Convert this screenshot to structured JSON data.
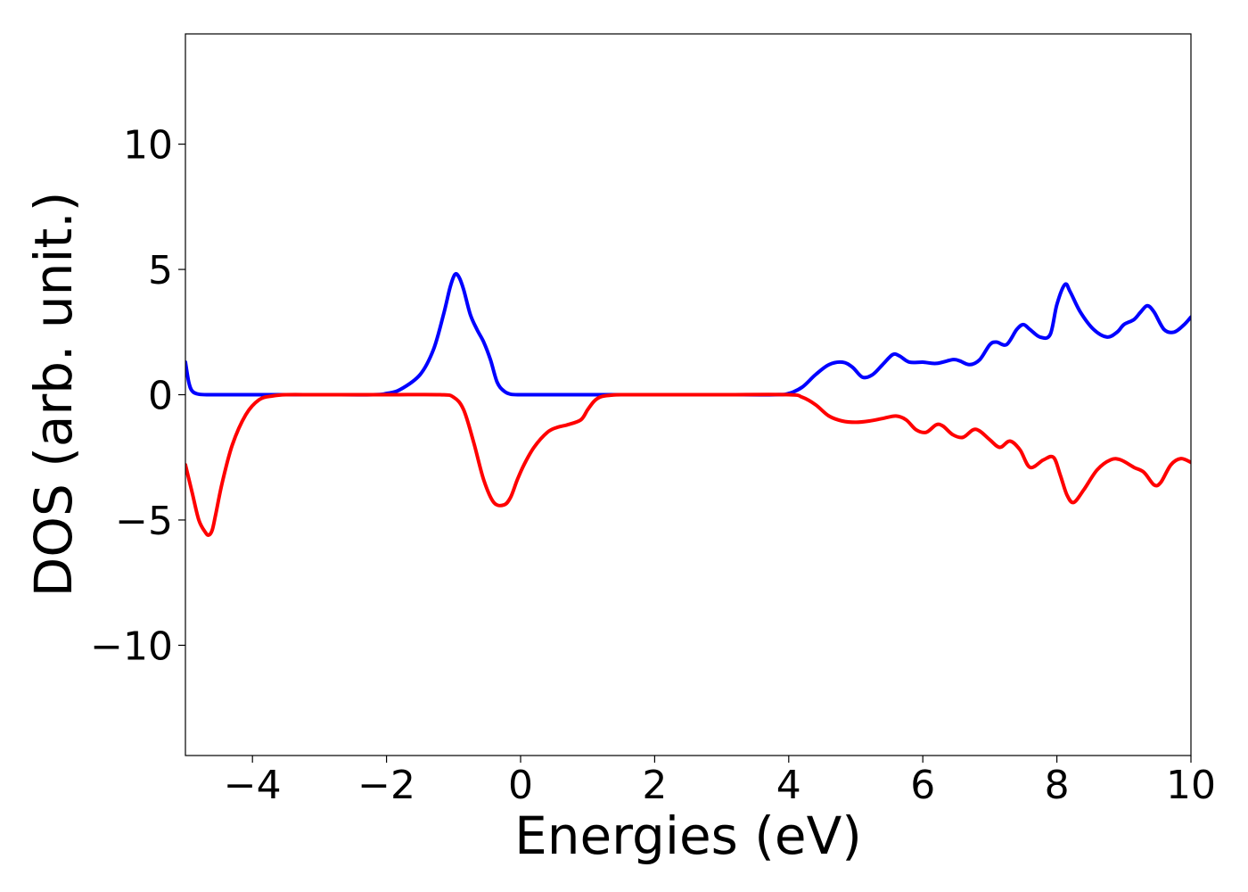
{
  "chart_data": {
    "type": "line",
    "xlabel": "Energies (eV)",
    "ylabel": "DOS (arb. unit.)",
    "xlim": [
      -5,
      10
    ],
    "ylim": [
      -14.4,
      14.4
    ],
    "grid": false,
    "x_ticks": [
      -4,
      -2,
      0,
      2,
      4,
      6,
      8,
      10
    ],
    "x_tick_labels": [
      "−4",
      "−2",
      "0",
      "2",
      "4",
      "6",
      "8",
      "10"
    ],
    "y_ticks": [
      -10,
      -5,
      0,
      5,
      10
    ],
    "y_tick_labels": [
      "−10",
      "−5",
      "0",
      "5",
      "10"
    ],
    "series": [
      {
        "color": "#0000ff",
        "x": [
          -5.0,
          -4.95,
          -4.9,
          -4.8,
          -4.6,
          -4.0,
          -3.0,
          -2.2,
          -2.0,
          -1.8,
          -1.5,
          -1.3,
          -1.15,
          -1.05,
          -0.98,
          -0.92,
          -0.85,
          -0.75,
          -0.65,
          -0.55,
          -0.45,
          -0.35,
          -0.25,
          -0.15,
          0.0,
          0.2,
          0.5,
          1.0,
          2.0,
          3.0,
          3.8,
          4.0,
          4.2,
          4.4,
          4.6,
          4.8,
          4.95,
          5.1,
          5.25,
          5.4,
          5.55,
          5.65,
          5.8,
          6.0,
          6.2,
          6.45,
          6.55,
          6.7,
          6.85,
          7.0,
          7.1,
          7.25,
          7.4,
          7.5,
          7.6,
          7.75,
          7.9,
          8.0,
          8.12,
          8.2,
          8.35,
          8.55,
          8.75,
          8.9,
          9.0,
          9.15,
          9.25,
          9.35,
          9.45,
          9.6,
          9.75,
          9.9,
          10.0
        ],
        "y": [
          1.3,
          0.5,
          0.15,
          0.02,
          0.0,
          0.0,
          0.0,
          0.0,
          0.05,
          0.2,
          0.8,
          1.8,
          3.2,
          4.3,
          4.8,
          4.7,
          4.2,
          3.2,
          2.6,
          2.1,
          1.4,
          0.5,
          0.15,
          0.02,
          0.0,
          0.0,
          0.0,
          0.0,
          0.0,
          0.0,
          0.0,
          0.05,
          0.3,
          0.8,
          1.2,
          1.3,
          1.1,
          0.7,
          0.8,
          1.2,
          1.6,
          1.55,
          1.3,
          1.3,
          1.25,
          1.4,
          1.35,
          1.2,
          1.4,
          2.0,
          2.1,
          2.0,
          2.6,
          2.8,
          2.6,
          2.3,
          2.4,
          3.6,
          4.4,
          4.1,
          3.3,
          2.6,
          2.3,
          2.5,
          2.8,
          3.0,
          3.3,
          3.55,
          3.3,
          2.6,
          2.5,
          2.8,
          3.1
        ]
      },
      {
        "color": "#ff0000",
        "x": [
          -5.0,
          -4.9,
          -4.8,
          -4.7,
          -4.65,
          -4.6,
          -4.55,
          -4.45,
          -4.3,
          -4.1,
          -3.9,
          -3.7,
          -3.5,
          -3.0,
          -2.0,
          -1.2,
          -1.0,
          -0.85,
          -0.7,
          -0.55,
          -0.4,
          -0.25,
          -0.15,
          -0.05,
          0.05,
          0.2,
          0.4,
          0.55,
          0.7,
          0.9,
          1.0,
          1.1,
          1.2,
          1.35,
          1.5,
          2.0,
          3.0,
          4.0,
          4.2,
          4.4,
          4.6,
          4.8,
          5.0,
          5.2,
          5.4,
          5.6,
          5.75,
          5.9,
          6.05,
          6.2,
          6.3,
          6.45,
          6.6,
          6.75,
          6.85,
          7.0,
          7.15,
          7.3,
          7.45,
          7.6,
          7.8,
          7.95,
          8.05,
          8.15,
          8.25,
          8.4,
          8.6,
          8.8,
          8.95,
          9.15,
          9.3,
          9.45,
          9.55,
          9.7,
          9.85,
          10.0
        ],
        "y": [
          -2.8,
          -3.9,
          -5.0,
          -5.5,
          -5.6,
          -5.4,
          -4.8,
          -3.5,
          -2.0,
          -0.8,
          -0.2,
          -0.05,
          0.0,
          0.0,
          0.0,
          0.0,
          -0.1,
          -0.6,
          -1.9,
          -3.4,
          -4.3,
          -4.4,
          -4.1,
          -3.4,
          -2.8,
          -2.1,
          -1.5,
          -1.3,
          -1.2,
          -1.0,
          -0.6,
          -0.25,
          -0.08,
          -0.02,
          0.0,
          0.0,
          0.0,
          0.0,
          -0.1,
          -0.4,
          -0.85,
          -1.05,
          -1.1,
          -1.05,
          -0.95,
          -0.85,
          -1.0,
          -1.4,
          -1.5,
          -1.2,
          -1.25,
          -1.6,
          -1.7,
          -1.4,
          -1.45,
          -1.8,
          -2.1,
          -1.85,
          -2.2,
          -2.9,
          -2.6,
          -2.5,
          -3.2,
          -4.0,
          -4.3,
          -3.8,
          -3.0,
          -2.6,
          -2.6,
          -2.9,
          -3.1,
          -3.6,
          -3.5,
          -2.8,
          -2.55,
          -2.7
        ]
      }
    ]
  }
}
